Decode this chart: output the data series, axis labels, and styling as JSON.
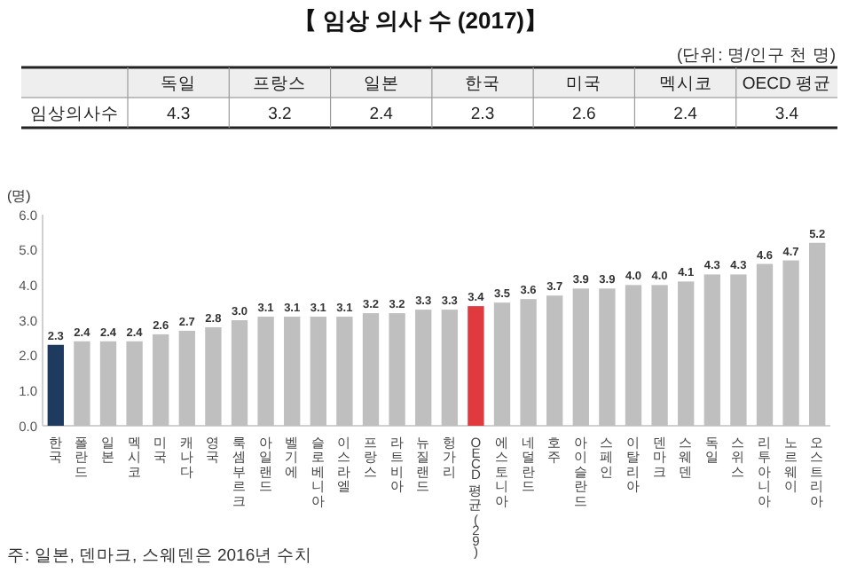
{
  "chart_data": [
    {
      "type": "other",
      "title": "【 임상 의사 수 (2017)】",
      "subtitle": "(단위: 명/인구 천 명)",
      "categories": [
        "독일",
        "프랑스",
        "일본",
        "한국",
        "미국",
        "멕시코",
        "OECD 평균"
      ],
      "series": [
        {
          "name": "임상의사수",
          "values": [
            4.3,
            3.2,
            2.4,
            2.3,
            2.6,
            2.4,
            3.4
          ]
        }
      ],
      "data_labels": true
    },
    {
      "type": "bar",
      "ylabel": "(명)",
      "categories": [
        "한국",
        "폴란드",
        "일본",
        "멕시코",
        "미국",
        "캐나다",
        "영국",
        "룩셈부르크",
        "아일랜드",
        "벨기에",
        "슬로베니아",
        "이스라엘",
        "프랑스",
        "라트비아",
        "뉴질랜드",
        "헝가리",
        "OECD 평균(29)",
        "에스토니아",
        "네덜란드",
        "호주",
        "아이슬란드",
        "스페인",
        "이탈리아",
        "덴마크",
        "스웨덴",
        "독일",
        "스위스",
        "리투아니아",
        "노르웨이",
        "오스트리아"
      ],
      "values": [
        2.3,
        2.4,
        2.4,
        2.4,
        2.6,
        2.7,
        2.8,
        3.0,
        3.1,
        3.1,
        3.1,
        3.1,
        3.2,
        3.2,
        3.3,
        3.3,
        3.4,
        3.5,
        3.6,
        3.7,
        3.9,
        3.9,
        4.0,
        4.0,
        4.1,
        4.3,
        4.3,
        4.6,
        4.7,
        5.2
      ],
      "value_labels": [
        "2.3",
        "2.4",
        "2.4",
        "2.4",
        "2.6",
        "2.7",
        "2.8",
        "3.0",
        "3.1",
        "3.1",
        "3.1",
        "3.1",
        "3.2",
        "3.2",
        "3.3",
        "3.3",
        "3.4",
        "3.5",
        "3.6",
        "3.7",
        "3.9",
        "3.9",
        "4.0",
        "4.0",
        "4.1",
        "4.3",
        "4.3",
        "4.6",
        "4.7",
        "5.2"
      ],
      "colors": [
        "#1f3a5f",
        "#bfbfbf",
        "#bfbfbf",
        "#bfbfbf",
        "#bfbfbf",
        "#bfbfbf",
        "#bfbfbf",
        "#bfbfbf",
        "#bfbfbf",
        "#bfbfbf",
        "#bfbfbf",
        "#bfbfbf",
        "#bfbfbf",
        "#bfbfbf",
        "#bfbfbf",
        "#bfbfbf",
        "#e0393e",
        "#bfbfbf",
        "#bfbfbf",
        "#bfbfbf",
        "#bfbfbf",
        "#bfbfbf",
        "#bfbfbf",
        "#bfbfbf",
        "#bfbfbf",
        "#bfbfbf",
        "#bfbfbf",
        "#bfbfbf",
        "#bfbfbf",
        "#bfbfbf"
      ],
      "ylim": [
        0,
        6
      ],
      "yticks": [
        {
          "value": 0,
          "label": "0.0"
        },
        {
          "value": 1,
          "label": "1.0"
        },
        {
          "value": 2,
          "label": "2.0"
        },
        {
          "value": 3,
          "label": "3.0"
        },
        {
          "value": 4,
          "label": "4.0"
        },
        {
          "value": 5,
          "label": "5.0"
        },
        {
          "value": 6,
          "label": "6.0"
        }
      ],
      "grid": false,
      "annotations": [
        "주: 일본, 덴마크, 스웨덴은 2016년 수치"
      ]
    }
  ]
}
